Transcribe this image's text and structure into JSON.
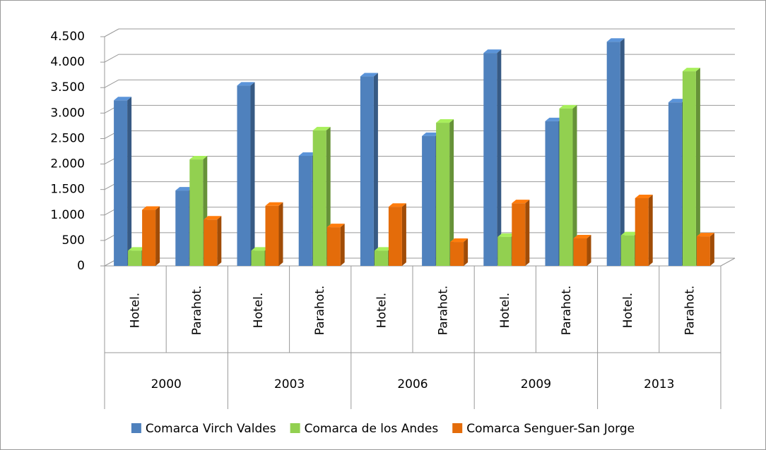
{
  "chart_data": {
    "type": "bar3d",
    "categories": [
      "Hotel.",
      "Parahot.",
      "Hotel.",
      "Parahot.",
      "Hotel.",
      "Parahot.",
      "Hotel.",
      "Parahot.",
      "Hotel.",
      "Parahot."
    ],
    "category_groups": [
      "2000",
      "2003",
      "2006",
      "2009",
      "2013"
    ],
    "series": [
      {
        "name": "Comarca Virch Valdes",
        "color": "#4f81bd",
        "values": [
          3250,
          1480,
          3540,
          2160,
          3720,
          2550,
          4180,
          2840,
          4400,
          3210
        ]
      },
      {
        "name": "Comarca de los Andes",
        "color": "#92d050",
        "values": [
          300,
          2090,
          300,
          2660,
          300,
          2810,
          570,
          3090,
          600,
          3820
        ]
      },
      {
        "name": "Comarca Senguer-San Jorge",
        "color": "#e46c0a",
        "values": [
          1100,
          910,
          1180,
          760,
          1160,
          470,
          1230,
          540,
          1330,
          580
        ]
      }
    ],
    "ylim": [
      0,
      4500
    ],
    "yticks": [
      0,
      500,
      {
        "value": 1000,
        "label": "1.000"
      },
      {
        "value": 1500,
        "label": "1.500"
      },
      {
        "value": 2000,
        "label": "2.000"
      },
      {
        "value": 2500,
        "label": "2.500"
      },
      {
        "value": 3000,
        "label": "3.000"
      },
      {
        "value": 3500,
        "label": "3.500"
      },
      {
        "value": 4000,
        "label": "4.000"
      },
      {
        "value": 4500,
        "label": "4.500"
      }
    ],
    "grid": true,
    "legend": "bottom"
  }
}
